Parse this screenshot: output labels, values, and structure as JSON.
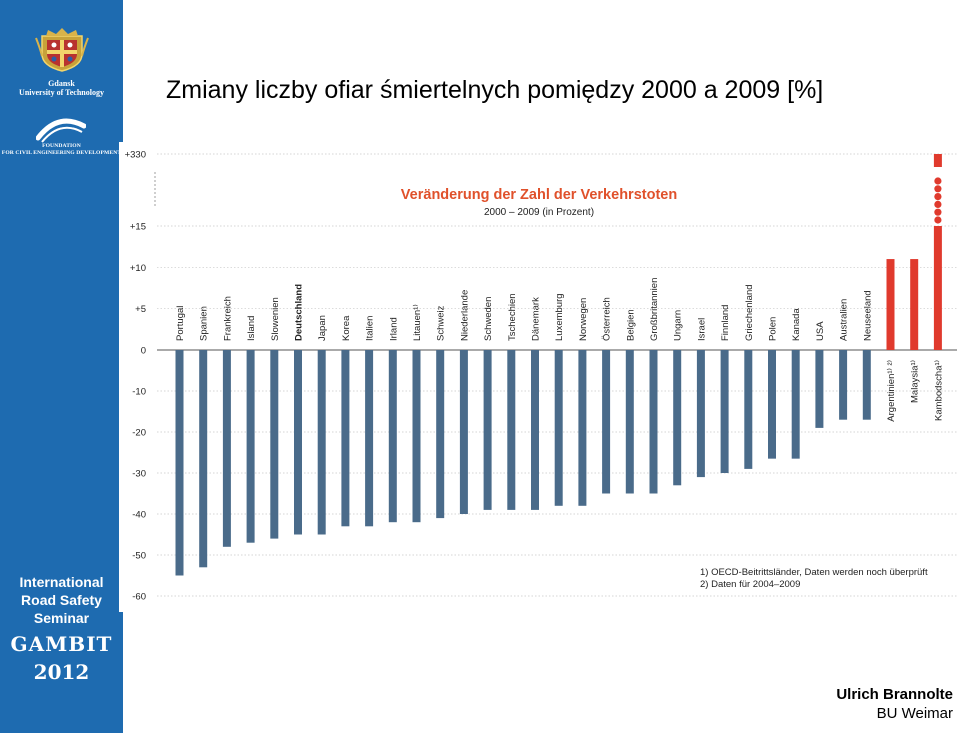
{
  "slide": {
    "title": "Zmiany liczby ofiar śmiertelnych pomiędzy 2000 a 2009 [%]",
    "author": "Ulrich Brannolte",
    "affiliation": "BU Weimar"
  },
  "sidebar": {
    "university_line1": "Gdansk",
    "university_line2": "University of Technology",
    "foundation_line1": "FOUNDATION",
    "foundation_line2": "FOR CIVIL ENGINEERING DEVELOPMENT",
    "seminar_line1": "International",
    "seminar_line2": "Road Safety",
    "seminar_line3": "Seminar",
    "gambit": "GAMBIT",
    "year": "2012",
    "background_color": "#1e6bb0"
  },
  "chart_data": {
    "type": "bar",
    "title": "Veränderung der Zahl der Verkehrstoten",
    "subtitle": "2000 – 2009 (in Prozent)",
    "y_tick_labels": [
      "+330",
      "+15",
      "+10",
      "+5",
      "0",
      "-10",
      "-20",
      "-30",
      "-40",
      "-50",
      "-60"
    ],
    "categories": [
      "Portugal",
      "Spanien",
      "Frankreich",
      "Island",
      "Slowenien",
      "Deutschland",
      "Japan",
      "Korea",
      "Italien",
      "Irland",
      "Litauen¹⁾",
      "Schweiz",
      "Niederlande",
      "Schweden",
      "Tschechien",
      "Dänemark",
      "Luxemburg",
      "Norwegen",
      "Österreich",
      "Belgien",
      "Großbritannien",
      "Ungarn",
      "Israel",
      "Finnland",
      "Griechenland",
      "Polen",
      "Kanada",
      "USA",
      "Australien",
      "Neuseeland",
      "Argentinien¹⁾ ²⁾",
      "Malaysia¹⁾",
      "Kambodscha¹⁾"
    ],
    "values": [
      -55,
      -53,
      -48,
      -47,
      -46,
      -45,
      -45,
      -43,
      -43,
      -42,
      -42,
      -41,
      -40,
      -39,
      -39,
      -39,
      -38,
      -38,
      -35,
      -35,
      -35,
      -33,
      -31,
      -30,
      -29,
      -26.5,
      -26.5,
      -19,
      -17,
      -17,
      11,
      11,
      330
    ],
    "colors": {
      "decrease": "#4a6b8a",
      "increase": "#e03a2d"
    },
    "bold_category": "Deutschland",
    "footnotes": [
      "1) OECD-Beitrittsländer, Daten werden noch überprüft",
      "2) Daten für 2004–2009"
    ],
    "grid": true
  }
}
